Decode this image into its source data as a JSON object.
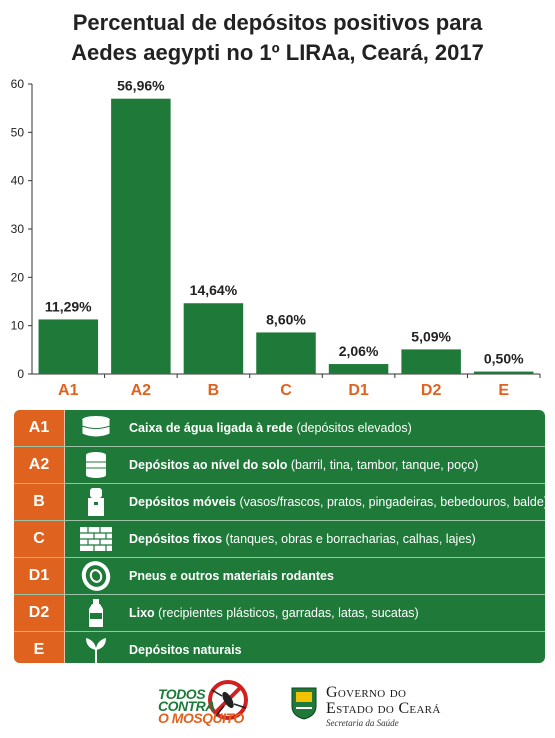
{
  "title_line1": "Percentual de depósitos positivos para",
  "title_line2": "Aedes aegypti no 1º LIRAa, Ceará, 2017",
  "chart_data": {
    "type": "bar",
    "categories": [
      "A1",
      "A2",
      "B",
      "C",
      "D1",
      "D2",
      "E"
    ],
    "values": [
      11.29,
      56.96,
      14.64,
      8.6,
      2.06,
      5.09,
      0.5
    ],
    "data_labels": [
      "11,29%",
      "56,96%",
      "14,64%",
      "8,60%",
      "2,06%",
      "5,09%",
      "0,50%"
    ],
    "ylim": [
      0,
      60
    ],
    "yticks": [
      0,
      10,
      20,
      30,
      40,
      50,
      60
    ],
    "grid": false,
    "bar_color": "#1f7a3a",
    "category_label_color": "#e0621f"
  },
  "legend": [
    {
      "code": "A1",
      "icon": "water-tank-icon",
      "bold": "Caixa de água ligada à rede",
      "rest": " (depósitos elevados)"
    },
    {
      "code": "A2",
      "icon": "barrel-icon",
      "bold": "Depósitos ao nível do solo",
      "rest": " (barril, tina, tambor, tanque, poço)"
    },
    {
      "code": "B",
      "icon": "water-cooler-icon",
      "bold": "Depósitos móveis",
      "rest": " (vasos/frascos, pratos, pingadeiras, bebedouros, balde)"
    },
    {
      "code": "C",
      "icon": "brick-wall-icon",
      "bold": "Depósitos fixos",
      "rest": " (tanques, obras e borracharias, calhas, lajes)"
    },
    {
      "code": "D1",
      "icon": "tire-icon",
      "bold": "Pneus e outros materiais rodantes",
      "rest": ""
    },
    {
      "code": "D2",
      "icon": "bottle-icon",
      "bold": "Lixo",
      "rest": " (recipientes plásticos, garradas, latas, sucatas)"
    },
    {
      "code": "E",
      "icon": "plant-icon",
      "bold": "Depósitos naturais",
      "rest": ""
    }
  ],
  "footer": {
    "campaign_line1": "TODOS",
    "campaign_line2": "CONTRA",
    "campaign_line3": "O MOSQUITO",
    "gov_line1": "Governo do",
    "gov_line2": "Estado do Ceará",
    "gov_line3": "Secretaria da Saúde"
  },
  "colors": {
    "green": "#1f7a3a",
    "orange": "#e0621f"
  }
}
